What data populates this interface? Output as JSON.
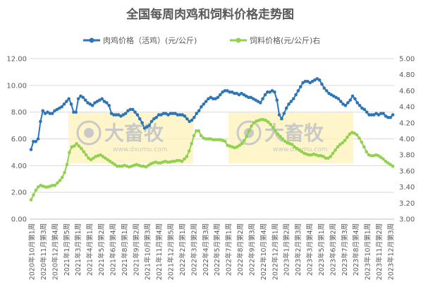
{
  "chart_data": {
    "type": "line",
    "title": "全国每周肉鸡和饲料价格走势图",
    "xlabel": "",
    "ylabel": "",
    "ylim": [
      0,
      12
    ],
    "y2lim": [
      3,
      5
    ],
    "yticks": [
      "0.00",
      "2.00",
      "4.00",
      "6.00",
      "8.00",
      "10.00",
      "12.00"
    ],
    "y2ticks": [
      "3.00",
      "3.20",
      "3.40",
      "3.60",
      "3.80",
      "4.00",
      "4.20",
      "4.40",
      "4.60",
      "4.80",
      "5.00"
    ],
    "x_tick_labels": [
      "2020年10月第1周",
      "2020年11月第3周",
      "2020年12月第4周",
      "2021年1月第5周",
      "2021年3月第1周",
      "2021年4月第1周",
      "2021年5月第2周",
      "2021年6月第4周",
      "2021年8月第1周",
      "2021年9月第2周",
      "2021年10月第3周",
      "2021年11月第4周",
      "2021年12月第5周",
      "2022年2月第1周",
      "2022年3月第2周",
      "2022年4月第3周",
      "2022年5月第4周",
      "2022年7月第1周",
      "2022年8月第2周",
      "2022年9月第3周",
      "2022年10月第4周",
      "2022年12月第1周",
      "2023年1月第2周",
      "2023年2月第3周",
      "2023年3月第4周",
      "2023年5月第1周",
      "2023年6月第2周",
      "2023年7月第3周",
      "2023年8月第4周",
      "2023年10月第1周",
      "2023年11月第2周",
      "2023年12月第3周"
    ],
    "grid": true,
    "legend_position": "top",
    "series": [
      {
        "name": "肉鸡价格（活鸡）(元/公斤)",
        "axis": "left",
        "color": "#2e75b6",
        "values": [
          5.2,
          5.8,
          5.8,
          6.0,
          7.3,
          8.1,
          7.9,
          8.0,
          7.9,
          7.9,
          8.1,
          8.2,
          8.3,
          8.4,
          8.6,
          8.8,
          9.0,
          8.6,
          8.0,
          8.0,
          9.0,
          9.2,
          9.1,
          8.9,
          8.7,
          8.6,
          8.5,
          8.7,
          8.8,
          8.9,
          9.0,
          8.8,
          8.7,
          8.5,
          7.9,
          7.8,
          7.8,
          7.8,
          7.7,
          7.8,
          7.9,
          8.1,
          8.2,
          8.2,
          8.0,
          7.8,
          7.5,
          7.2,
          6.8,
          6.9,
          7.0,
          7.3,
          7.5,
          7.6,
          7.8,
          7.8,
          7.9,
          7.9,
          7.8,
          7.9,
          7.9,
          7.9,
          7.8,
          7.8,
          7.8,
          7.7,
          7.5,
          7.3,
          7.4,
          7.6,
          7.9,
          8.1,
          8.4,
          8.6,
          8.8,
          9.0,
          9.1,
          9.0,
          9.0,
          9.1,
          9.3,
          9.5,
          9.6,
          9.6,
          9.5,
          9.5,
          9.4,
          9.4,
          9.3,
          9.4,
          9.3,
          9.2,
          9.1,
          9.1,
          9.0,
          8.9,
          8.8,
          8.7,
          9.0,
          9.3,
          9.5,
          9.5,
          9.6,
          9.5,
          8.9,
          7.8,
          7.5,
          7.9,
          8.3,
          8.6,
          8.8,
          9.0,
          9.3,
          9.6,
          9.9,
          10.2,
          10.3,
          10.3,
          10.2,
          10.3,
          10.4,
          10.5,
          10.4,
          10.1,
          9.8,
          9.6,
          9.4,
          9.3,
          9.2,
          9.1,
          9.0,
          8.8,
          8.6,
          8.5,
          8.7,
          8.9,
          9.2,
          9.0,
          8.7,
          8.5,
          8.3,
          8.2,
          8.0,
          7.8,
          7.8,
          7.8,
          7.9,
          7.8,
          7.9,
          7.9,
          7.7,
          7.6,
          7.6,
          7.8
        ]
      },
      {
        "name": "饲料价格(元/公斤)右",
        "axis": "right",
        "color": "#92d050",
        "values": [
          3.24,
          3.3,
          3.36,
          3.4,
          3.42,
          3.41,
          3.4,
          3.4,
          3.41,
          3.42,
          3.42,
          3.45,
          3.48,
          3.52,
          3.58,
          3.68,
          3.83,
          3.9,
          3.91,
          3.94,
          3.91,
          3.88,
          3.84,
          3.8,
          3.76,
          3.74,
          3.76,
          3.78,
          3.79,
          3.8,
          3.78,
          3.76,
          3.74,
          3.72,
          3.7,
          3.68,
          3.66,
          3.66,
          3.66,
          3.67,
          3.66,
          3.65,
          3.66,
          3.67,
          3.68,
          3.67,
          3.66,
          3.66,
          3.65,
          3.67,
          3.69,
          3.7,
          3.71,
          3.7,
          3.7,
          3.71,
          3.72,
          3.71,
          3.71,
          3.72,
          3.72,
          3.73,
          3.73,
          3.72,
          3.75,
          3.78,
          3.85,
          3.94,
          4.04,
          4.1,
          4.1,
          4.04,
          4.01,
          4.0,
          4.0,
          4.0,
          3.99,
          3.99,
          3.99,
          3.99,
          3.98,
          3.97,
          3.92,
          3.91,
          3.9,
          3.89,
          3.9,
          3.92,
          3.94,
          3.98,
          4.03,
          4.1,
          4.16,
          4.2,
          4.22,
          4.23,
          4.24,
          4.24,
          4.23,
          4.21,
          4.18,
          4.14,
          4.1,
          4.06,
          4.03,
          4.0,
          3.97,
          3.95,
          3.94,
          3.93,
          3.9,
          3.88,
          3.86,
          3.84,
          3.82,
          3.81,
          3.8,
          3.8,
          3.81,
          3.8,
          3.79,
          3.79,
          3.78,
          3.76,
          3.76,
          3.78,
          3.82,
          3.86,
          3.9,
          3.93,
          3.95,
          3.98,
          4.02,
          4.06,
          4.08,
          4.07,
          4.05,
          4.01,
          3.96,
          3.9,
          3.84,
          3.8,
          3.79,
          3.79,
          3.8,
          3.79,
          3.77,
          3.75,
          3.72,
          3.7,
          3.68,
          3.66
        ]
      }
    ]
  },
  "watermark": {
    "brand": "大畜牧",
    "url": "www.dxumu.com"
  }
}
